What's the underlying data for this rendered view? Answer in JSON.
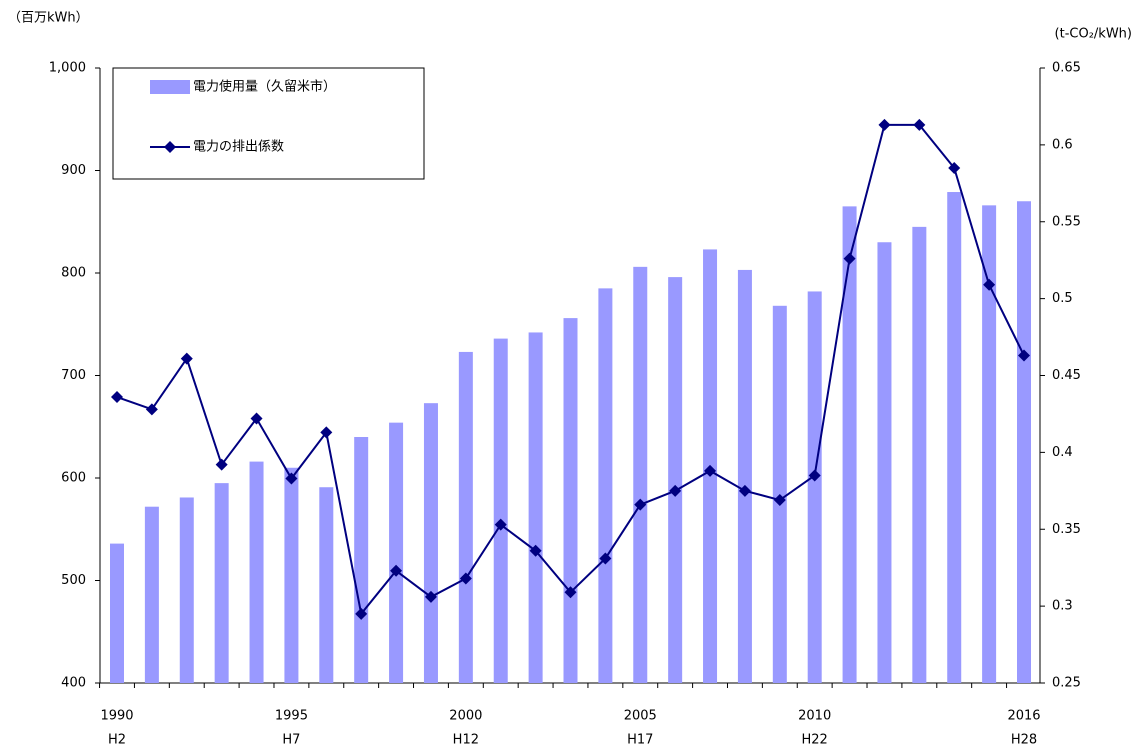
{
  "chart_data": {
    "type": "bar_line",
    "y_label": "（百万kWh）",
    "y2_label": "(t-CO₂/kWh)",
    "categories": [
      "1990",
      null,
      null,
      null,
      null,
      "1995",
      null,
      null,
      null,
      null,
      "2000",
      null,
      null,
      null,
      null,
      "2005",
      null,
      null,
      null,
      null,
      "2010",
      null,
      null,
      null,
      null,
      null,
      "2016"
    ],
    "categories2": [
      "H2",
      null,
      null,
      null,
      null,
      "H7",
      null,
      null,
      null,
      null,
      "H12",
      null,
      null,
      null,
      null,
      "H17",
      null,
      null,
      null,
      null,
      "H22",
      null,
      null,
      null,
      null,
      null,
      "H28"
    ],
    "series": [
      {
        "name": "電力使用量（久留米市）",
        "type": "bar",
        "color": "#9999ff",
        "axis": "y",
        "values": [
          536,
          572,
          581,
          595,
          616,
          610,
          591,
          640,
          654,
          673,
          723,
          736,
          742,
          756,
          785,
          806,
          796,
          823,
          803,
          768,
          782,
          865,
          830,
          845,
          879,
          866,
          870
        ]
      },
      {
        "name": "電力の排出係数",
        "type": "line",
        "color": "#000080",
        "axis": "y2",
        "values": [
          0.436,
          0.428,
          0.461,
          0.392,
          0.422,
          0.383,
          0.413,
          0.295,
          0.323,
          0.306,
          0.318,
          0.353,
          0.336,
          0.309,
          0.331,
          0.366,
          0.375,
          0.388,
          0.375,
          0.369,
          0.385,
          0.526,
          0.613,
          0.613,
          0.585,
          0.509,
          0.463
        ]
      }
    ],
    "ylim": [
      400,
      1000
    ],
    "yticks": [
      400,
      500,
      600,
      700,
      800,
      900,
      {
        "value": 1000,
        "label": "1,000"
      }
    ],
    "y2lim": [
      0.25,
      0.65
    ],
    "y2ticks": [
      0.25,
      0.3,
      0.35,
      0.4,
      0.45,
      0.5,
      0.55,
      0.6,
      0.65
    ],
    "grid": false,
    "legend": "top-left"
  }
}
